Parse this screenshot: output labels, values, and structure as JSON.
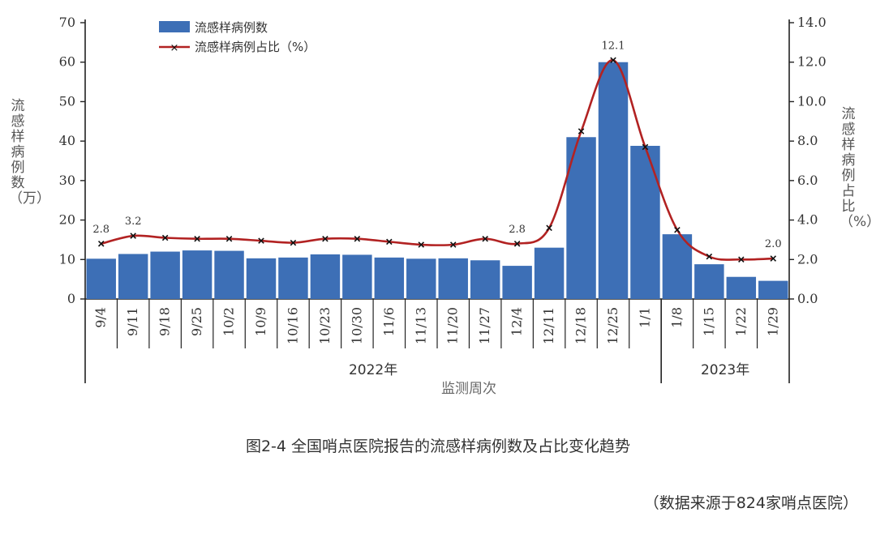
{
  "chart_data": {
    "type": "bar+line",
    "categories": [
      "9/4",
      "9/11",
      "9/18",
      "9/25",
      "10/2",
      "10/9",
      "10/16",
      "10/23",
      "10/30",
      "11/6",
      "11/13",
      "11/20",
      "11/27",
      "12/4",
      "12/11",
      "12/18",
      "12/25",
      "1/1",
      "1/8",
      "1/15",
      "1/22",
      "1/29"
    ],
    "series": [
      {
        "name": "流感样病例数",
        "type": "bar",
        "axis": "left",
        "color": "#3d6fb6",
        "values": [
          10.2,
          11.4,
          12.0,
          12.3,
          12.2,
          10.3,
          10.5,
          11.3,
          11.2,
          10.5,
          10.2,
          10.3,
          9.8,
          8.4,
          13.0,
          41.0,
          60.0,
          38.8,
          16.4,
          8.8,
          5.6,
          4.6
        ]
      },
      {
        "name": "流感样病例占比（%）",
        "type": "line",
        "axis": "right",
        "color": "#b22222",
        "values": [
          2.8,
          3.2,
          3.1,
          3.05,
          3.05,
          2.95,
          2.85,
          3.05,
          3.05,
          2.9,
          2.75,
          2.75,
          3.05,
          2.8,
          3.6,
          8.5,
          12.1,
          7.7,
          3.5,
          2.15,
          2.0,
          2.05
        ]
      }
    ],
    "data_labels": [
      {
        "index": 0,
        "text": "2.8"
      },
      {
        "index": 1,
        "text": "3.2"
      },
      {
        "index": 13,
        "text": "2.8"
      },
      {
        "index": 16,
        "text": "12.1"
      },
      {
        "index": 21,
        "text": "2.0"
      }
    ],
    "y_left": {
      "label": "流感样病例数（万）",
      "ylim": [
        0,
        70
      ],
      "ticks": [
        "0",
        "10",
        "20",
        "30",
        "40",
        "50",
        "60",
        "70"
      ]
    },
    "y_right": {
      "label": "流感样病例占比（%）",
      "ylim": [
        0,
        14
      ],
      "ticks": [
        "0.0",
        "2.0",
        "4.0",
        "6.0",
        "8.0",
        "10.0",
        "12.0",
        "14.0"
      ]
    },
    "x_groups": [
      {
        "label": "2022年",
        "from": "9/4",
        "to": "1/1"
      },
      {
        "label": "2023年",
        "from": "1/8",
        "to": "1/29"
      }
    ],
    "xlabel": "监测周次",
    "legend_position": "top-left",
    "grid": false
  },
  "caption": "图2-4  全国哨点医院报告的流感样病例数及占比变化趋势",
  "source_note": "（数据来源于824家哨点医院）"
}
